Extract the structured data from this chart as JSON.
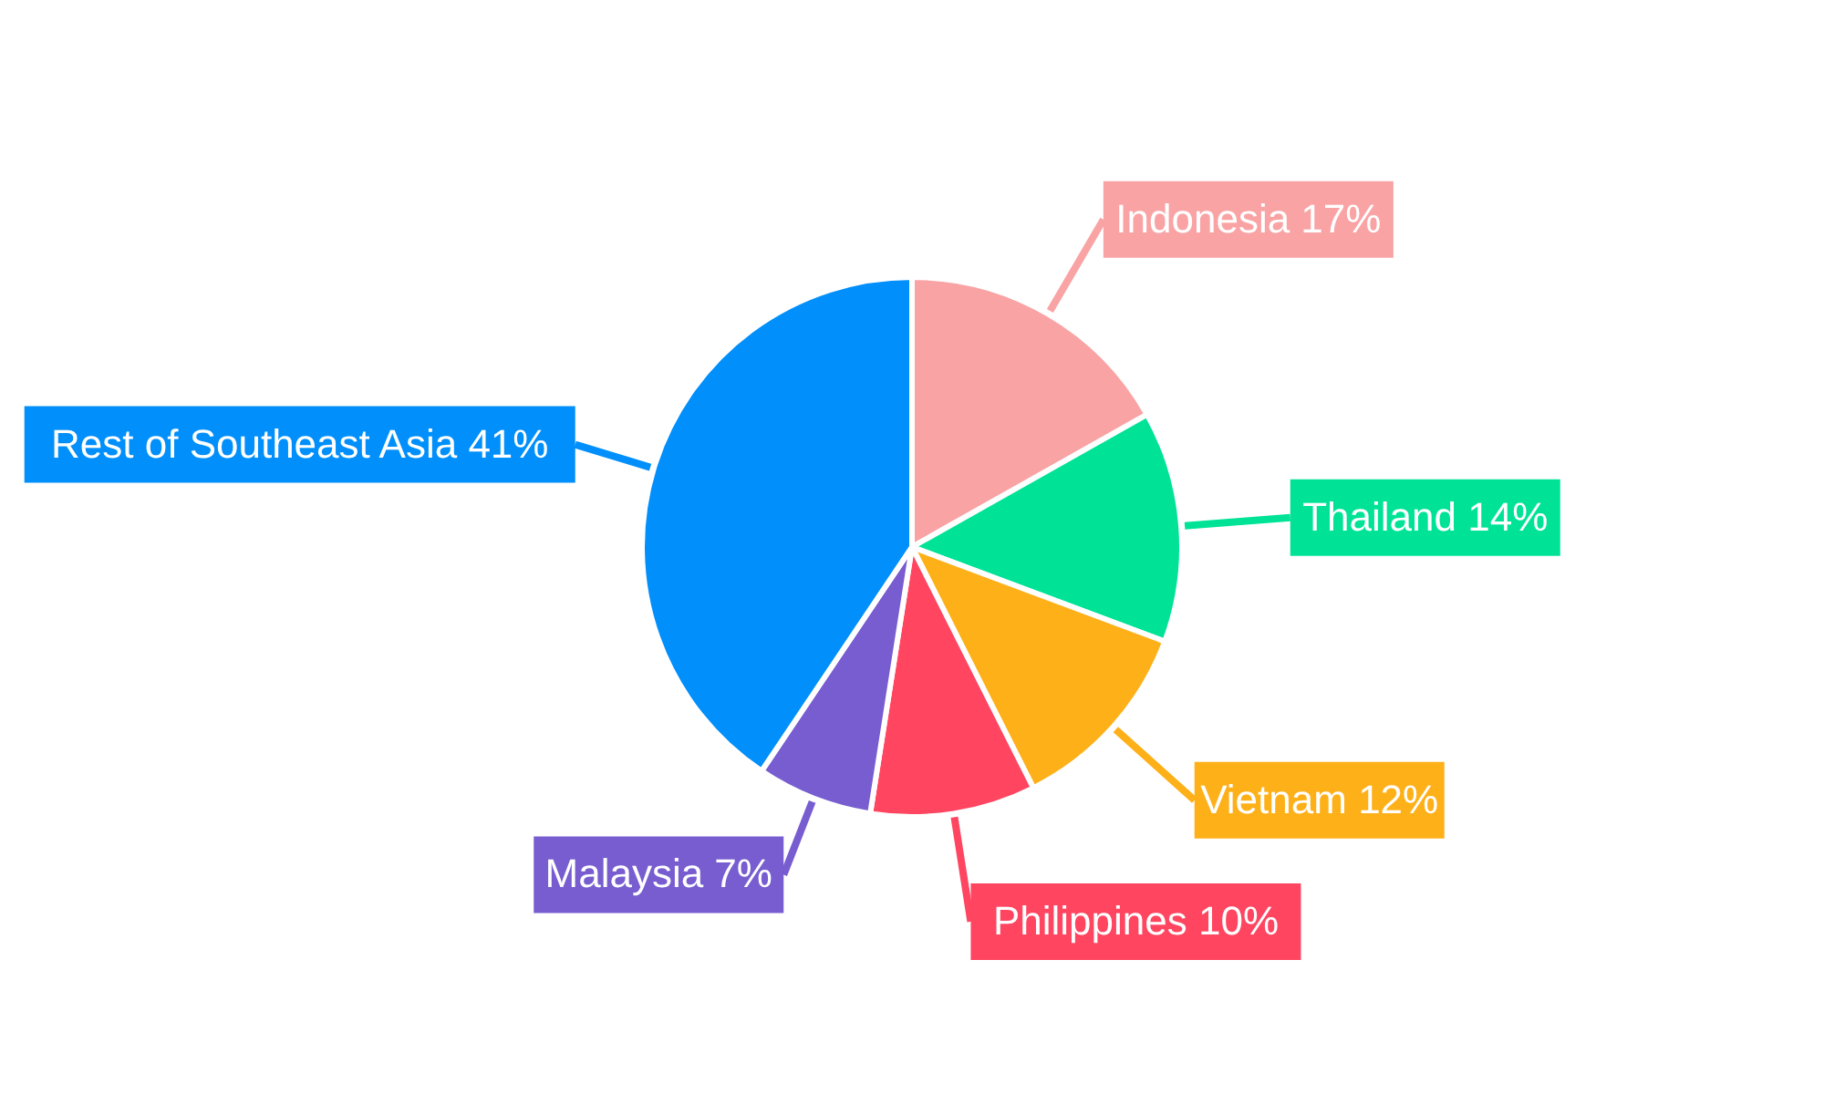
{
  "chart_data": {
    "type": "pie",
    "categories": [
      "Indonesia",
      "Thailand",
      "Vietnam",
      "Philippines",
      "Malaysia",
      "Rest of Southeast Asia"
    ],
    "values": [
      17,
      14,
      12,
      10,
      7,
      41
    ],
    "value_labels": [
      "17%",
      "14%",
      "12%",
      "10%",
      "7%",
      "41%"
    ],
    "colors": [
      "#f9a3a4",
      "#00e396",
      "#feb019",
      "#ff4560",
      "#775dd0",
      "#008ffb"
    ]
  }
}
